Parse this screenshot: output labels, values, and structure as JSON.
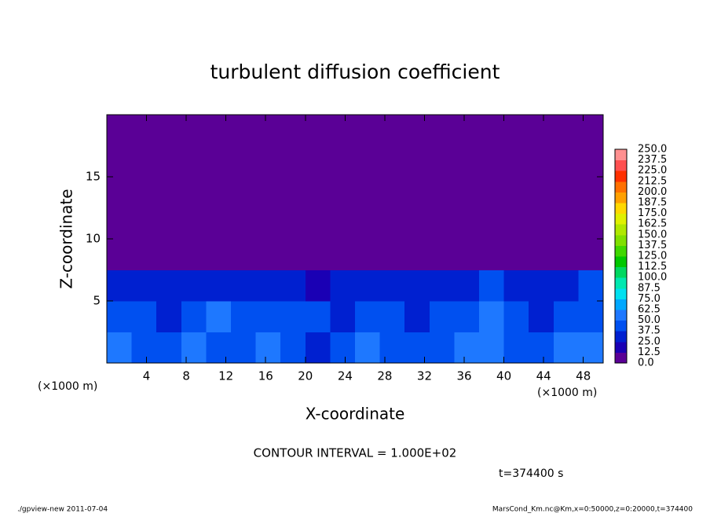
{
  "chart_data": {
    "type": "heatmap",
    "title": "turbulent diffusion coefficient",
    "xlabel": "X-coordinate",
    "ylabel": "Z-coordinate",
    "x_unit_label": "(×1000 m)",
    "y_unit_label": "(×1000 m)",
    "annotations": [
      "CONTOUR INTERVAL = 1.000E+02",
      "t=374400 s"
    ],
    "footer_left": "./gpview-new  2011-07-04",
    "footer_right": "MarsCond_Km.nc@Km,x=0:50000,z=0:20000,t=374400",
    "xlim": [
      0,
      50
    ],
    "ylim": [
      0,
      20
    ],
    "xticks": [
      4,
      8,
      12,
      16,
      20,
      24,
      28,
      32,
      36,
      40,
      44,
      48
    ],
    "yticks": [
      5,
      10,
      15
    ],
    "x": [
      1.25,
      3.75,
      6.25,
      8.75,
      11.25,
      13.75,
      16.25,
      18.75,
      21.25,
      23.75,
      26.25,
      28.75,
      31.25,
      33.75,
      36.25,
      38.75,
      41.25,
      43.75,
      46.25,
      48.75
    ],
    "y": [
      1.25,
      3.75,
      6.25,
      8.75,
      11.25,
      13.75,
      16.25,
      18.75
    ],
    "z": [
      [
        50,
        45,
        40,
        55,
        45,
        40,
        50,
        45,
        35,
        40,
        50,
        45,
        40,
        45,
        50,
        60,
        40,
        45,
        50,
        55
      ],
      [
        40,
        45,
        35,
        40,
        50,
        45,
        40,
        45,
        40,
        35,
        45,
        40,
        35,
        40,
        45,
        55,
        40,
        35,
        40,
        45
      ],
      [
        35,
        30,
        25,
        30,
        35,
        30,
        25,
        30,
        20,
        25,
        30,
        25,
        30,
        35,
        30,
        40,
        25,
        30,
        35,
        40
      ],
      [
        10,
        5,
        2,
        2,
        2,
        2,
        2,
        2,
        2,
        2,
        2,
        2,
        2,
        2,
        5,
        5,
        2,
        2,
        5,
        10
      ],
      [
        5,
        2,
        0,
        0,
        0,
        0,
        2,
        0,
        0,
        0,
        0,
        0,
        0,
        0,
        5,
        2,
        0,
        0,
        2,
        5
      ],
      [
        0,
        0,
        0,
        0,
        0,
        2,
        0,
        0,
        0,
        0,
        0,
        0,
        0,
        0,
        0,
        0,
        0,
        0,
        0,
        0
      ],
      [
        0,
        0,
        0,
        0,
        0,
        0,
        0,
        0,
        0,
        0,
        0,
        0,
        0,
        0,
        0,
        0,
        0,
        0,
        0,
        0
      ],
      [
        0,
        0,
        0,
        0,
        0,
        0,
        0,
        0,
        0,
        0,
        0,
        0,
        0,
        0,
        0,
        0,
        0,
        0,
        0,
        0
      ]
    ],
    "levels": [
      {
        "value": 0,
        "label": "0.0"
      },
      12.5,
      {
        "value": 25,
        "label": "25.0"
      },
      37.5,
      {
        "value": 50,
        "label": "50.0"
      },
      62.5,
      {
        "value": 75,
        "label": "75.0"
      },
      87.5,
      {
        "value": 100,
        "label": "100.0"
      },
      112.5,
      {
        "value": 125,
        "label": "125.0"
      },
      137.5,
      {
        "value": 150,
        "label": "150.0"
      },
      162.5,
      {
        "value": 175,
        "label": "175.0"
      },
      187.5,
      {
        "value": 200,
        "label": "200.0"
      },
      212.5,
      {
        "value": 225,
        "label": "225.0"
      },
      237.5,
      {
        "value": 250,
        "label": "250.0"
      }
    ],
    "colors": [
      "#5a0096",
      "#1a00b4",
      "#0020d0",
      "#0050f0",
      "#1e78ff",
      "#00a8ff",
      "#00e0f0",
      "#00e8b0",
      "#00d860",
      "#00c800",
      "#40d800",
      "#80e000",
      "#b0e800",
      "#e0f000",
      "#ffd800",
      "#ffa000",
      "#ff7000",
      "#ff3000",
      "#ff5050",
      "#ff9090"
    ]
  }
}
